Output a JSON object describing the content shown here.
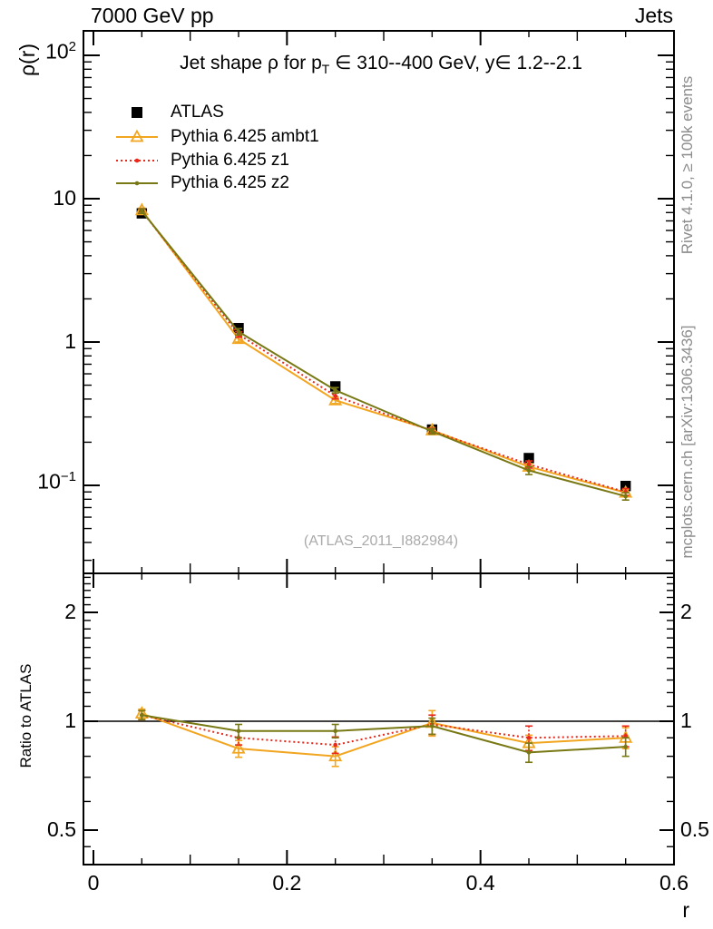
{
  "header": {
    "left": "7000 GeV pp",
    "right": "Jets"
  },
  "side_notes": {
    "top_right": "Rivet 4.1.0, ≥ 100k events",
    "bottom_right": "mcplots.cern.ch [arXiv:1306.3436]"
  },
  "watermark": "(ATLAS_2011_I882984)",
  "chart_data": {
    "type": "line",
    "title": {
      "pre": "Jet shape ρ for p",
      "sub": "T",
      "post": " ∈ 310--400 GeV, y∈ 1.2--2.1"
    },
    "xlabel": "r",
    "ylabel": "ρ(r)",
    "ratio_ylabel": "Ratio to ATLAS",
    "yscale": "log",
    "grid": false,
    "legend_position": "top-left",
    "xlim": [
      -0.01,
      0.6
    ],
    "ylim_main": [
      0.024,
      148
    ],
    "ylim_ratio": [
      0.4,
      2.56
    ],
    "x": [
      0.05,
      0.15,
      0.25,
      0.35,
      0.45,
      0.55
    ],
    "x_ticks": {
      "major": [
        0,
        0.2,
        0.4,
        0.6
      ],
      "labels": [
        "0",
        "0.2",
        "0.4",
        "0.6"
      ]
    },
    "y_ticks_main": [
      {
        "v": 100,
        "base": "10",
        "exp": "2"
      },
      {
        "v": 10,
        "base": "10",
        "exp": ""
      },
      {
        "v": 1,
        "base": "1",
        "exp": ""
      },
      {
        "v": 0.1,
        "base": "10",
        "exp": "−1"
      }
    ],
    "y_ticks_ratio": [
      {
        "v": 2,
        "label": "2"
      },
      {
        "v": 1,
        "label": "1"
      },
      {
        "v": 0.5,
        "label": "0.5"
      }
    ],
    "series": [
      {
        "name": "ATLAS",
        "color": "#000000",
        "marker": "square-filled",
        "line": "none",
        "values": [
          7.9,
          1.25,
          0.49,
          0.245,
          0.155,
          0.099
        ],
        "errors": [
          0.2,
          0.03,
          0.012,
          0.006,
          0.004,
          0.003
        ],
        "ratio": [
          1,
          1,
          1,
          1,
          1,
          1
        ],
        "ratio_errors": [
          0,
          0,
          0,
          0,
          0,
          0
        ]
      },
      {
        "name": "Pythia 6.425 ambt1",
        "color": "#f2a51f",
        "marker": "triangle-open",
        "line": "solid",
        "values": [
          8.3,
          1.05,
          0.392,
          0.242,
          0.135,
          0.089
        ],
        "errors": [
          0.3,
          0.05,
          0.02,
          0.01,
          0.007,
          0.005
        ],
        "ratio": [
          1.05,
          0.84,
          0.8,
          0.99,
          0.87,
          0.9
        ],
        "ratio_errors": [
          0.03,
          0.045,
          0.05,
          0.08,
          0.045,
          0.06
        ]
      },
      {
        "name": "Pythia 6.425 z1",
        "color": "#e8291c",
        "marker": "dot",
        "line": "dotted",
        "values": [
          8.2,
          1.13,
          0.421,
          0.24,
          0.14,
          0.09
        ],
        "errors": [
          0.3,
          0.05,
          0.02,
          0.01,
          0.008,
          0.005
        ],
        "ratio": [
          1.04,
          0.9,
          0.86,
          0.98,
          0.9,
          0.91
        ],
        "ratio_errors": [
          0.03,
          0.04,
          0.045,
          0.06,
          0.07,
          0.06
        ]
      },
      {
        "name": "Pythia 6.425 z2",
        "color": "#787814",
        "marker": "dot",
        "line": "solid",
        "values": [
          8.2,
          1.18,
          0.461,
          0.238,
          0.127,
          0.084
        ],
        "errors": [
          0.3,
          0.06,
          0.02,
          0.01,
          0.008,
          0.005
        ],
        "ratio": [
          1.04,
          0.94,
          0.94,
          0.97,
          0.82,
          0.85
        ],
        "ratio_errors": [
          0.03,
          0.04,
          0.04,
          0.05,
          0.05,
          0.05
        ]
      }
    ]
  }
}
